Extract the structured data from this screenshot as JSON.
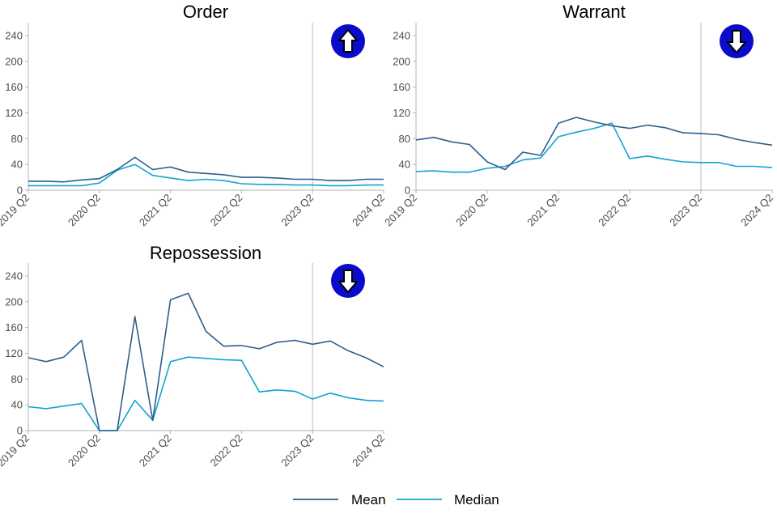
{
  "chart_data": [
    {
      "type": "line",
      "title": "Order",
      "x": [
        "2019 Q2",
        "2019 Q3",
        "2019 Q4",
        "2020 Q1",
        "2020 Q2",
        "2020 Q3",
        "2020 Q4",
        "2021 Q1",
        "2021 Q2",
        "2021 Q3",
        "2021 Q4",
        "2022 Q1",
        "2022 Q2",
        "2022 Q3",
        "2022 Q4",
        "2023 Q1",
        "2023 Q2",
        "2023 Q3",
        "2023 Q4",
        "2024 Q1",
        "2024 Q2"
      ],
      "x_ticks": [
        "2019 Q2",
        "2020 Q2",
        "2021 Q2",
        "2022 Q2",
        "2023 Q2",
        "2024 Q2"
      ],
      "y_ticks": [
        0,
        40,
        80,
        120,
        160,
        200,
        240
      ],
      "ylim": [
        0,
        260
      ],
      "reference_line_x": "2023 Q2",
      "trend_icon": "arrow-up-icon",
      "series": [
        {
          "name": "Mean",
          "color": "#2d5f8b",
          "values": [
            14,
            14,
            13,
            16,
            18,
            32,
            51,
            32,
            36,
            28,
            26,
            24,
            20,
            20,
            19,
            17,
            17,
            15,
            15,
            17,
            17
          ]
        },
        {
          "name": "Median",
          "color": "#12a3d4",
          "values": [
            7,
            7,
            7,
            7,
            11,
            31,
            40,
            23,
            19,
            15,
            17,
            15,
            10,
            9,
            9,
            8,
            8,
            7,
            7,
            8,
            8
          ]
        }
      ]
    },
    {
      "type": "line",
      "title": "Warrant",
      "x": [
        "2019 Q2",
        "2019 Q3",
        "2019 Q4",
        "2020 Q1",
        "2020 Q2",
        "2020 Q3",
        "2020 Q4",
        "2021 Q1",
        "2021 Q2",
        "2021 Q3",
        "2021 Q4",
        "2022 Q1",
        "2022 Q2",
        "2022 Q3",
        "2022 Q4",
        "2023 Q1",
        "2023 Q2",
        "2023 Q3",
        "2023 Q4",
        "2024 Q1",
        "2024 Q2"
      ],
      "x_ticks": [
        "2019 Q2",
        "2020 Q2",
        "2021 Q2",
        "2022 Q2",
        "2023 Q2",
        "2024 Q2"
      ],
      "y_ticks": [
        0,
        40,
        80,
        120,
        160,
        200,
        240
      ],
      "ylim": [
        0,
        260
      ],
      "reference_line_x": "2023 Q2",
      "trend_icon": "arrow-down-icon",
      "series": [
        {
          "name": "Mean",
          "color": "#2d5f8b",
          "values": [
            78,
            82,
            75,
            71,
            44,
            32,
            59,
            54,
            104,
            113,
            106,
            100,
            96,
            101,
            97,
            89,
            88,
            86,
            79,
            74,
            70
          ]
        },
        {
          "name": "Median",
          "color": "#12a3d4",
          "values": [
            29,
            30,
            28,
            28,
            34,
            37,
            47,
            50,
            83,
            90,
            96,
            104,
            49,
            53,
            48,
            44,
            43,
            43,
            37,
            37,
            35
          ]
        }
      ]
    },
    {
      "type": "line",
      "title": "Repossession",
      "x": [
        "2019 Q2",
        "2019 Q3",
        "2019 Q4",
        "2020 Q1",
        "2020 Q2",
        "2020 Q3",
        "2020 Q4",
        "2021 Q1",
        "2021 Q2",
        "2021 Q3",
        "2021 Q4",
        "2022 Q1",
        "2022 Q2",
        "2022 Q3",
        "2022 Q4",
        "2023 Q1",
        "2023 Q2",
        "2023 Q3",
        "2023 Q4",
        "2024 Q1",
        "2024 Q2"
      ],
      "x_ticks": [
        "2019 Q2",
        "2020 Q2",
        "2021 Q2",
        "2022 Q2",
        "2023 Q2",
        "2024 Q2"
      ],
      "y_ticks": [
        0,
        40,
        80,
        120,
        160,
        200,
        240
      ],
      "ylim": [
        0,
        260
      ],
      "reference_line_x": "2023 Q2",
      "trend_icon": "arrow-down-icon",
      "series": [
        {
          "name": "Mean",
          "color": "#2d5f8b",
          "values": [
            113,
            107,
            114,
            140,
            0,
            0,
            177,
            16,
            203,
            213,
            154,
            131,
            132,
            127,
            137,
            140,
            134,
            139,
            124,
            113,
            99
          ]
        },
        {
          "name": "Median",
          "color": "#12a3d4",
          "values": [
            37,
            34,
            38,
            42,
            0,
            0,
            47,
            16,
            107,
            114,
            112,
            110,
            109,
            60,
            63,
            61,
            49,
            58,
            51,
            47,
            46
          ]
        }
      ]
    }
  ],
  "legend": {
    "placement": "bottom-center",
    "items": [
      {
        "label": "Mean",
        "color": "#2d5f8b"
      },
      {
        "label": "Median",
        "color": "#12a3d4"
      }
    ]
  },
  "colors": {
    "axis": "#b3b3b3",
    "reference_line": "#bdbdbd",
    "tick_text": "#4d4d4d",
    "icon_fill": "#0b0bcc",
    "icon_arrow": "#ffffff"
  }
}
